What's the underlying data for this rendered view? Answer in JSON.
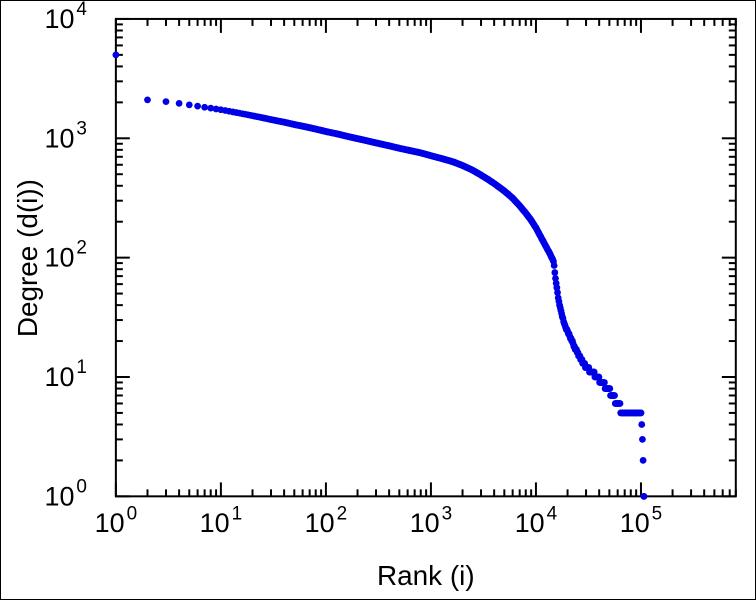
{
  "chart_data": {
    "type": "scatter",
    "title": "",
    "xlabel": "Rank (i)",
    "ylabel": "Degree (d(i))",
    "legend": "none",
    "grid": false,
    "x_axis": {
      "scale": "log",
      "min": 1,
      "max": 800000,
      "major_ticks": [
        {
          "v": 1,
          "base": "10",
          "exp": "0"
        },
        {
          "v": 10,
          "base": "10",
          "exp": "1"
        },
        {
          "v": 100,
          "base": "10",
          "exp": "2"
        },
        {
          "v": 1000,
          "base": "10",
          "exp": "3"
        },
        {
          "v": 10000,
          "base": "10",
          "exp": "4"
        },
        {
          "v": 100000,
          "base": "10",
          "exp": "5"
        }
      ]
    },
    "y_axis": {
      "scale": "log",
      "min": 1,
      "max": 10000,
      "major_ticks": [
        {
          "v": 1,
          "base": "10",
          "exp": "0"
        },
        {
          "v": 10,
          "base": "10",
          "exp": "1"
        },
        {
          "v": 100,
          "base": "10",
          "exp": "2"
        },
        {
          "v": 1000,
          "base": "10",
          "exp": "3"
        },
        {
          "v": 10000,
          "base": "10",
          "exp": "4"
        }
      ]
    },
    "marker": {
      "shape": "circle",
      "color": "#0000e6",
      "radius": 3.4
    },
    "frame_color": "#000000",
    "background": "#ffffff",
    "series": [
      {
        "name": "degree-vs-rank",
        "points": [
          [
            1,
            5000
          ],
          [
            2,
            2100
          ],
          [
            3,
            2030
          ],
          [
            4,
            1960
          ],
          [
            5,
            1905
          ],
          [
            6,
            1860
          ],
          [
            7,
            1820
          ],
          [
            8,
            1790
          ],
          [
            9,
            1760
          ],
          [
            10,
            1735
          ],
          [
            12,
            1685
          ],
          [
            15,
            1625
          ],
          [
            20,
            1545
          ],
          [
            25,
            1485
          ],
          [
            30,
            1435
          ],
          [
            40,
            1365
          ],
          [
            50,
            1305
          ],
          [
            65,
            1245
          ],
          [
            80,
            1195
          ],
          [
            100,
            1140
          ],
          [
            130,
            1085
          ],
          [
            170,
            1025
          ],
          [
            220,
            975
          ],
          [
            300,
            915
          ],
          [
            400,
            865
          ],
          [
            500,
            825
          ],
          [
            650,
            785
          ],
          [
            800,
            755
          ],
          [
            1000,
            715
          ],
          [
            1300,
            672
          ],
          [
            1600,
            638
          ],
          [
            2000,
            592
          ],
          [
            2500,
            540
          ],
          [
            3000,
            492
          ],
          [
            3500,
            452
          ],
          [
            4000,
            418
          ],
          [
            5000,
            362
          ],
          [
            6000,
            315
          ],
          [
            7000,
            272
          ],
          [
            8000,
            236
          ],
          [
            9000,
            206
          ],
          [
            10000,
            178
          ],
          [
            11000,
            152
          ],
          [
            12000,
            132
          ],
          [
            13000,
            116
          ],
          [
            14000,
            102
          ],
          [
            14800,
            92
          ],
          [
            15200,
            72
          ],
          [
            15800,
            56
          ],
          [
            16300,
            46
          ],
          [
            17000,
            38
          ],
          [
            18000,
            31
          ],
          [
            19000,
            27
          ],
          [
            20000,
            24
          ],
          [
            22000,
            20
          ],
          [
            24000,
            17
          ],
          [
            27000,
            14
          ],
          [
            30000,
            12
          ],
          [
            34000,
            11
          ],
          [
            38000,
            10
          ],
          [
            43000,
            9
          ],
          [
            48000,
            8
          ],
          [
            54000,
            7
          ],
          [
            60000,
            6
          ],
          [
            68000,
            5
          ],
          [
            100000,
            5
          ],
          [
            102000,
            4
          ],
          [
            104000,
            3
          ],
          [
            105000,
            2
          ],
          [
            107000,
            1
          ]
        ]
      }
    ]
  }
}
